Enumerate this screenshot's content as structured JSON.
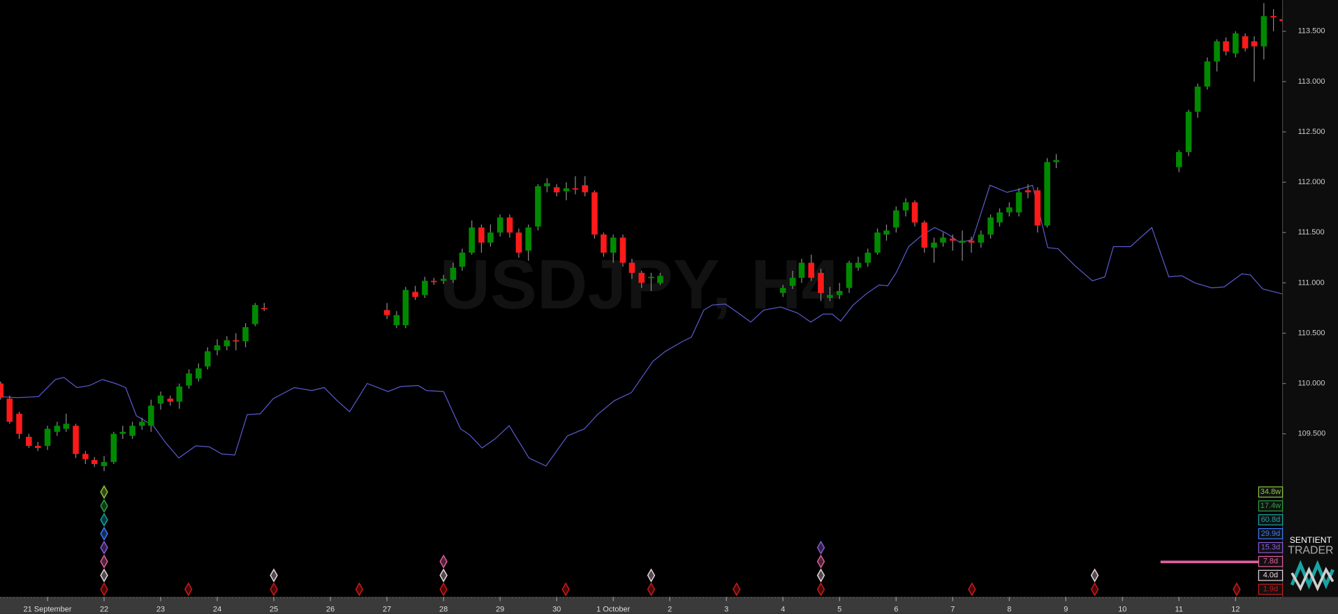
{
  "chart_data": {
    "type": "candlestick",
    "watermark": "USDJPY, H4",
    "logo": {
      "line1": "SENTIENT",
      "line2": "TRADER"
    },
    "up_color": "#008a00",
    "down_color": "#ff1a1a",
    "wick_color": "#8a8a8a",
    "xlim": [
      20.16,
      42.83
    ],
    "ylim": [
      107.88,
      113.81
    ],
    "xticks": [
      {
        "value": 21,
        "label": "21 September"
      },
      22,
      23,
      24,
      25,
      26,
      27,
      28,
      29,
      30,
      {
        "value": 31,
        "label": "1 October"
      },
      {
        "value": 32,
        "label": "2"
      },
      {
        "value": 33,
        "label": "3"
      },
      {
        "value": 34,
        "label": "4"
      },
      {
        "value": 35,
        "label": "5"
      },
      {
        "value": 36,
        "label": "6"
      },
      {
        "value": 37,
        "label": "7"
      },
      {
        "value": 38,
        "label": "8"
      },
      {
        "value": 39,
        "label": "9"
      },
      {
        "value": 40,
        "label": "10"
      },
      {
        "value": 41,
        "label": "11"
      },
      {
        "value": 42,
        "label": "12"
      }
    ],
    "yticks": [
      {
        "value": 109.5,
        "label": "109.500"
      },
      {
        "value": 110,
        "label": "110.000"
      },
      {
        "value": 110.5,
        "label": "110.500"
      },
      {
        "value": 111,
        "label": "111.000"
      },
      {
        "value": 111.5,
        "label": "111.500"
      },
      {
        "value": 112,
        "label": "112.000"
      },
      {
        "value": 112.5,
        "label": "112.500"
      },
      {
        "value": 113,
        "label": "113.000"
      },
      {
        "value": 113.5,
        "label": "113.500"
      }
    ],
    "x": [
      20.17,
      20.33,
      20.5,
      20.67,
      20.83,
      21,
      21.17,
      21.33,
      21.5,
      21.67,
      21.83,
      22,
      22.17,
      22.33,
      22.5,
      22.67,
      22.83,
      23,
      23.17,
      23.33,
      23.5,
      23.67,
      23.83,
      24,
      24.17,
      24.33,
      24.5,
      24.67,
      24.83,
      27,
      27.17,
      27.33,
      27.5,
      27.67,
      27.83,
      28,
      28.17,
      28.33,
      28.5,
      28.67,
      28.83,
      29,
      29.17,
      29.33,
      29.5,
      29.67,
      29.83,
      30,
      30.17,
      30.33,
      30.5,
      30.67,
      30.83,
      31,
      31.17,
      31.33,
      31.5,
      31.67,
      31.83,
      34,
      34.17,
      34.33,
      34.5,
      34.67,
      34.83,
      35,
      35.17,
      35.33,
      35.5,
      35.67,
      35.83,
      36,
      36.17,
      36.33,
      36.5,
      36.67,
      36.83,
      37,
      37.17,
      37.33,
      37.5,
      37.67,
      37.83,
      38,
      38.17,
      38.33,
      38.5,
      38.67,
      38.83,
      41,
      41.17,
      41.33,
      41.5,
      41.67,
      41.83,
      42,
      42.17,
      42.33,
      42.5,
      42.67,
      42.83
    ],
    "open": [
      110.0,
      109.85,
      109.7,
      109.47,
      109.38,
      109.38,
      109.52,
      109.55,
      109.58,
      109.3,
      109.24,
      109.18,
      109.22,
      109.5,
      109.48,
      109.58,
      109.58,
      109.8,
      109.85,
      109.82,
      109.98,
      110.05,
      110.17,
      110.33,
      110.37,
      110.43,
      110.42,
      110.59,
      110.75,
      110.73,
      110.58,
      110.58,
      110.91,
      110.88,
      111.02,
      111.02,
      111.03,
      111.16,
      111.3,
      111.55,
      111.4,
      111.5,
      111.65,
      111.5,
      111.32,
      111.56,
      111.96,
      111.95,
      111.91,
      111.94,
      111.97,
      111.9,
      111.48,
      111.3,
      111.45,
      111.2,
      111.1,
      111.05,
      111.0,
      110.9,
      110.97,
      111.05,
      111.2,
      111.1,
      110.85,
      110.88,
      110.95,
      111.15,
      111.2,
      111.3,
      111.48,
      111.55,
      111.72,
      111.8,
      111.6,
      111.35,
      111.4,
      111.44,
      111.4,
      111.42,
      111.4,
      111.48,
      111.6,
      111.7,
      111.7,
      111.92,
      111.92,
      111.57,
      112.2,
      112.15,
      112.3,
      112.7,
      112.95,
      113.2,
      113.4,
      113.28,
      113.45,
      113.4,
      113.35,
      113.65,
      113.62
    ],
    "high": [
      110.02,
      109.88,
      109.72,
      109.5,
      109.42,
      109.58,
      109.62,
      109.7,
      109.6,
      109.33,
      109.27,
      109.28,
      109.52,
      109.58,
      109.62,
      109.66,
      109.84,
      109.92,
      109.88,
      110.0,
      110.14,
      110.2,
      110.36,
      110.44,
      110.47,
      110.5,
      110.6,
      110.8,
      110.8,
      110.8,
      110.72,
      110.96,
      110.97,
      111.06,
      111.05,
      111.08,
      111.2,
      111.34,
      111.62,
      111.58,
      111.58,
      111.68,
      111.68,
      111.54,
      111.58,
      111.98,
      112.04,
      111.98,
      112.0,
      112.06,
      112.06,
      111.92,
      111.5,
      111.48,
      111.48,
      111.24,
      111.12,
      111.1,
      111.1,
      110.98,
      111.12,
      111.24,
      111.28,
      111.14,
      110.96,
      111.0,
      111.22,
      111.26,
      111.34,
      111.54,
      111.58,
      111.76,
      111.84,
      111.82,
      111.62,
      111.45,
      111.5,
      111.48,
      111.52,
      111.46,
      111.52,
      111.68,
      111.74,
      111.8,
      111.94,
      111.98,
      111.95,
      112.24,
      112.28,
      112.32,
      112.72,
      112.98,
      113.24,
      113.42,
      113.44,
      113.5,
      113.48,
      113.45,
      113.78,
      113.72,
      113.66
    ],
    "low": [
      109.84,
      109.6,
      109.45,
      109.36,
      109.33,
      109.34,
      109.48,
      109.52,
      109.26,
      109.2,
      109.17,
      109.13,
      109.2,
      109.45,
      109.45,
      109.54,
      109.52,
      109.74,
      109.78,
      109.75,
      109.95,
      110.02,
      110.14,
      110.28,
      110.33,
      110.33,
      110.36,
      110.57,
      110.72,
      110.64,
      110.55,
      110.55,
      110.83,
      110.85,
      110.98,
      110.99,
      111.0,
      111.12,
      111.28,
      111.3,
      111.36,
      111.46,
      111.45,
      111.25,
      111.22,
      111.52,
      111.9,
      111.86,
      111.82,
      111.88,
      111.86,
      111.44,
      111.26,
      111.2,
      111.16,
      111.04,
      110.95,
      110.92,
      110.98,
      110.86,
      110.94,
      111.0,
      111.02,
      110.82,
      110.82,
      110.84,
      110.9,
      111.12,
      111.16,
      111.28,
      111.42,
      111.5,
      111.66,
      111.56,
      111.3,
      111.2,
      111.36,
      111.32,
      111.22,
      111.3,
      111.35,
      111.44,
      111.56,
      111.66,
      111.66,
      111.84,
      111.5,
      111.55,
      112.14,
      112.1,
      112.26,
      112.64,
      112.92,
      113.1,
      113.26,
      113.24,
      113.3,
      113.0,
      113.22,
      113.5,
      113.58
    ],
    "close": [
      109.86,
      109.62,
      109.5,
      109.38,
      109.36,
      109.55,
      109.58,
      109.6,
      109.3,
      109.25,
      109.2,
      109.22,
      109.5,
      109.52,
      109.58,
      109.62,
      109.78,
      109.88,
      109.82,
      109.97,
      110.1,
      110.15,
      110.32,
      110.38,
      110.43,
      110.42,
      110.56,
      110.78,
      110.74,
      110.68,
      110.68,
      110.93,
      110.86,
      111.02,
      111.01,
      111.04,
      111.15,
      111.3,
      111.55,
      111.4,
      111.5,
      111.65,
      111.5,
      111.3,
      111.55,
      111.96,
      111.99,
      111.9,
      111.94,
      111.93,
      111.9,
      111.48,
      111.3,
      111.45,
      111.2,
      111.1,
      111.0,
      111.06,
      111.07,
      110.95,
      111.05,
      111.2,
      111.05,
      110.9,
      110.88,
      110.92,
      111.2,
      111.2,
      111.3,
      111.5,
      111.52,
      111.72,
      111.8,
      111.6,
      111.35,
      111.4,
      111.45,
      111.42,
      111.42,
      111.4,
      111.48,
      111.65,
      111.7,
      111.75,
      111.9,
      111.9,
      111.57,
      112.2,
      112.22,
      112.3,
      112.7,
      112.95,
      113.2,
      113.4,
      113.3,
      113.48,
      113.33,
      113.35,
      113.65,
      113.64,
      113.6
    ],
    "line": {
      "color": "#5a5ad0",
      "x": [
        20.16,
        20.46,
        20.84,
        21.14,
        21.29,
        21.52,
        21.74,
        21.97,
        22.2,
        22.38,
        22.57,
        22.87,
        23.09,
        23.32,
        23.62,
        23.86,
        24.08,
        24.31,
        24.53,
        24.76,
        24.99,
        25.36,
        25.67,
        25.89,
        26.12,
        26.34,
        26.65,
        27.02,
        27.24,
        27.55,
        27.7,
        28.0,
        28.3,
        28.46,
        28.68,
        28.91,
        29.16,
        29.51,
        29.81,
        30.19,
        30.49,
        30.72,
        31.02,
        31.32,
        31.7,
        31.92,
        32.23,
        32.38,
        32.6,
        32.75,
        32.98,
        33.21,
        33.43,
        33.66,
        33.96,
        34.26,
        34.49,
        34.71,
        34.87,
        35.02,
        35.24,
        35.47,
        35.7,
        35.85,
        36.0,
        36.22,
        36.45,
        36.68,
        36.9,
        37.13,
        37.35,
        37.66,
        37.96,
        38.18,
        38.41,
        38.68,
        38.86,
        39.16,
        39.47,
        39.69,
        39.84,
        40.14,
        40.52,
        40.82,
        41.05,
        41.28,
        41.58,
        41.8,
        42.11,
        42.26,
        42.48,
        42.83
      ],
      "values": [
        109.87,
        109.86,
        109.87,
        110.04,
        110.06,
        109.96,
        109.98,
        110.04,
        110.0,
        109.96,
        109.68,
        109.58,
        109.41,
        109.26,
        109.38,
        109.37,
        109.3,
        109.29,
        109.69,
        109.7,
        109.85,
        109.96,
        109.93,
        109.96,
        109.83,
        109.72,
        110.0,
        109.92,
        109.97,
        109.98,
        109.93,
        109.92,
        109.55,
        109.49,
        109.36,
        109.45,
        109.58,
        109.26,
        109.18,
        109.48,
        109.55,
        109.69,
        109.83,
        109.91,
        110.22,
        110.32,
        110.42,
        110.46,
        110.73,
        110.78,
        110.79,
        110.7,
        110.61,
        110.73,
        110.76,
        110.7,
        110.61,
        110.69,
        110.69,
        110.62,
        110.78,
        110.89,
        110.98,
        110.97,
        111.1,
        111.36,
        111.47,
        111.55,
        111.49,
        111.4,
        111.43,
        111.97,
        111.9,
        111.93,
        111.97,
        111.35,
        111.34,
        111.17,
        111.02,
        111.06,
        111.36,
        111.36,
        111.55,
        111.06,
        111.07,
        111.0,
        110.95,
        110.96,
        111.09,
        111.08,
        110.94,
        110.89
      ]
    },
    "cycles": [
      {
        "label": "34.8w",
        "color": "#8cc63f",
        "x": [
          22
        ]
      },
      {
        "label": "17.4w",
        "color": "#2ea043",
        "x": [
          22
        ]
      },
      {
        "label": "60.8d",
        "color": "#1aa3a3",
        "x": [
          22
        ]
      },
      {
        "label": "29.9d",
        "color": "#3b7dff",
        "x": [
          22
        ]
      },
      {
        "label": "15.3d",
        "color": "#8a5cd6",
        "x": [
          22,
          34.67
        ]
      },
      {
        "label": "7.8d",
        "color": "#e0609f",
        "x": [
          22,
          28,
          34.67
        ]
      },
      {
        "label": "4.0d",
        "color": "#e8d8e0",
        "x": [
          22,
          25,
          28,
          31.67,
          34.67,
          39.51
        ]
      },
      {
        "label": "1.9d",
        "color": "#cc1a1a",
        "x": [
          22,
          23.49,
          25,
          26.51,
          28,
          30.16,
          31.67,
          33.18,
          34.67,
          37.34,
          39.51,
          42.02
        ]
      }
    ]
  }
}
